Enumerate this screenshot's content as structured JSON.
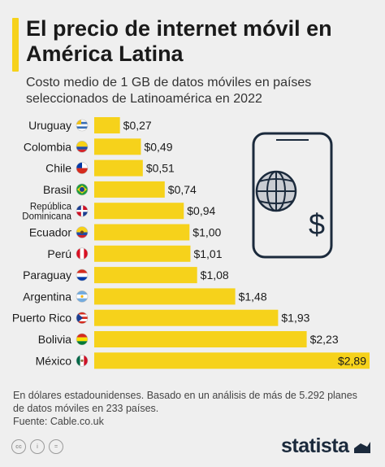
{
  "title": "El precio de internet móvil en América Latina",
  "subtitle": "Costo medio de 1 GB de datos móviles en países seleccionados de Latinoamérica en 2022",
  "chart_data": {
    "type": "bar",
    "orientation": "horizontal",
    "categories": [
      "Uruguay",
      "Colombia",
      "Chile",
      "Brasil",
      "República Dominicana",
      "Ecuador",
      "Perú",
      "Paraguay",
      "Argentina",
      "Puerto Rico",
      "Bolivia",
      "México"
    ],
    "category_lines": [
      [
        "Uruguay"
      ],
      [
        "Colombia"
      ],
      [
        "Chile"
      ],
      [
        "Brasil"
      ],
      [
        "República",
        "Dominicana"
      ],
      [
        "Ecuador"
      ],
      [
        "Perú"
      ],
      [
        "Paraguay"
      ],
      [
        "Argentina"
      ],
      [
        "Puerto Rico"
      ],
      [
        "Bolivia"
      ],
      [
        "México"
      ]
    ],
    "values": [
      0.27,
      0.49,
      0.51,
      0.74,
      0.94,
      1.0,
      1.01,
      1.08,
      1.48,
      1.93,
      2.23,
      2.89
    ],
    "value_labels": [
      "$0,27",
      "$0,49",
      "$0,51",
      "$0,74",
      "$0,94",
      "$1,00",
      "$1,01",
      "$1,08",
      "$1,48",
      "$1,93",
      "$2,23",
      "$2,89"
    ],
    "flag_icons": [
      "flag-uruguay-icon",
      "flag-colombia-icon",
      "flag-chile-icon",
      "flag-brasil-icon",
      "flag-republica-dominicana-icon",
      "flag-ecuador-icon",
      "flag-peru-icon",
      "flag-paraguay-icon",
      "flag-argentina-icon",
      "flag-puerto-rico-icon",
      "flag-bolivia-icon",
      "flag-mexico-icon"
    ],
    "xlim": [
      0,
      2.89
    ],
    "grid": false,
    "bar_color": "#f6d21b"
  },
  "footnote": {
    "lines": [
      "En dólares estadounidenses. Basado en un análisis de más de 5.292 planes",
      "de datos móviles en 233 países."
    ],
    "source": "Fuente: Cable.co.uk"
  },
  "license_icons": [
    "cc-icon",
    "by-icon",
    "nd-icon"
  ],
  "license_icon_glyphs": [
    "cc",
    "i",
    "="
  ],
  "brand": "statista",
  "colors": {
    "background": "#efefef",
    "accent": "#f6d21b",
    "text": "#1a1a1a",
    "brand": "#1b2a3c"
  },
  "illustration_icons": [
    "smartphone-icon",
    "globe-icon",
    "dollar-icon"
  ],
  "dollar_glyph": "$"
}
